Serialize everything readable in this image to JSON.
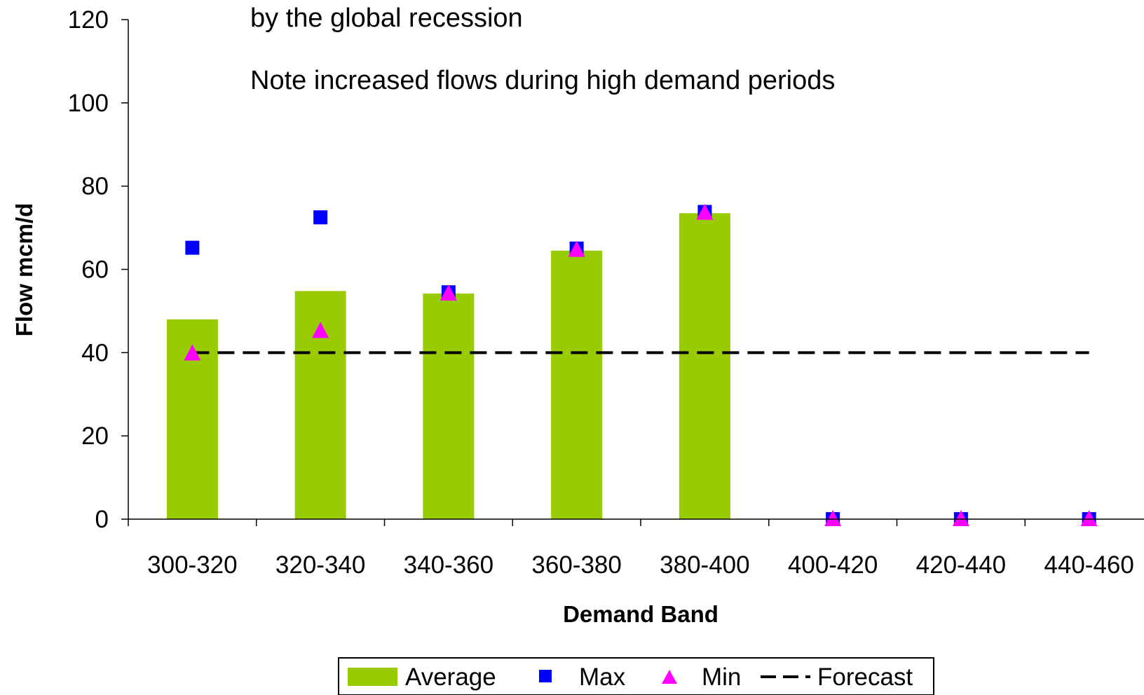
{
  "colors": {
    "average": "#99cc00",
    "max": "#0000ff",
    "min": "#ff00ff",
    "forecast": "#000000",
    "axis": "#000000"
  },
  "chart_data": {
    "type": "bar",
    "title": "",
    "xlabel": "Demand Band",
    "ylabel": "Flow mcm/d",
    "ylim": [
      0,
      120
    ],
    "yticks": [
      0,
      20,
      40,
      60,
      80,
      100,
      120
    ],
    "grid": false,
    "legend_position": "bottom",
    "categories": [
      "300-320",
      "320-340",
      "340-360",
      "360-380",
      "380-400",
      "400-420",
      "420-440",
      "440-460"
    ],
    "series": [
      {
        "name": "Average",
        "kind": "bar",
        "values": [
          48,
          54.8,
          54.2,
          64.5,
          73.5,
          null,
          null,
          null
        ]
      },
      {
        "name": "Max",
        "kind": "square-marker",
        "values": [
          65.2,
          72.5,
          54.5,
          65,
          73.8,
          0,
          0,
          0
        ]
      },
      {
        "name": "Min",
        "kind": "triangle-marker",
        "values": [
          39.8,
          45.2,
          54.2,
          64.7,
          73.6,
          0,
          0,
          0
        ]
      },
      {
        "name": "Forecast",
        "kind": "dashed-line",
        "values": [
          40,
          40,
          40,
          40,
          40,
          40,
          40,
          40
        ]
      }
    ],
    "annotations": [
      "by the global recession",
      "Note increased flows during high demand periods"
    ]
  }
}
